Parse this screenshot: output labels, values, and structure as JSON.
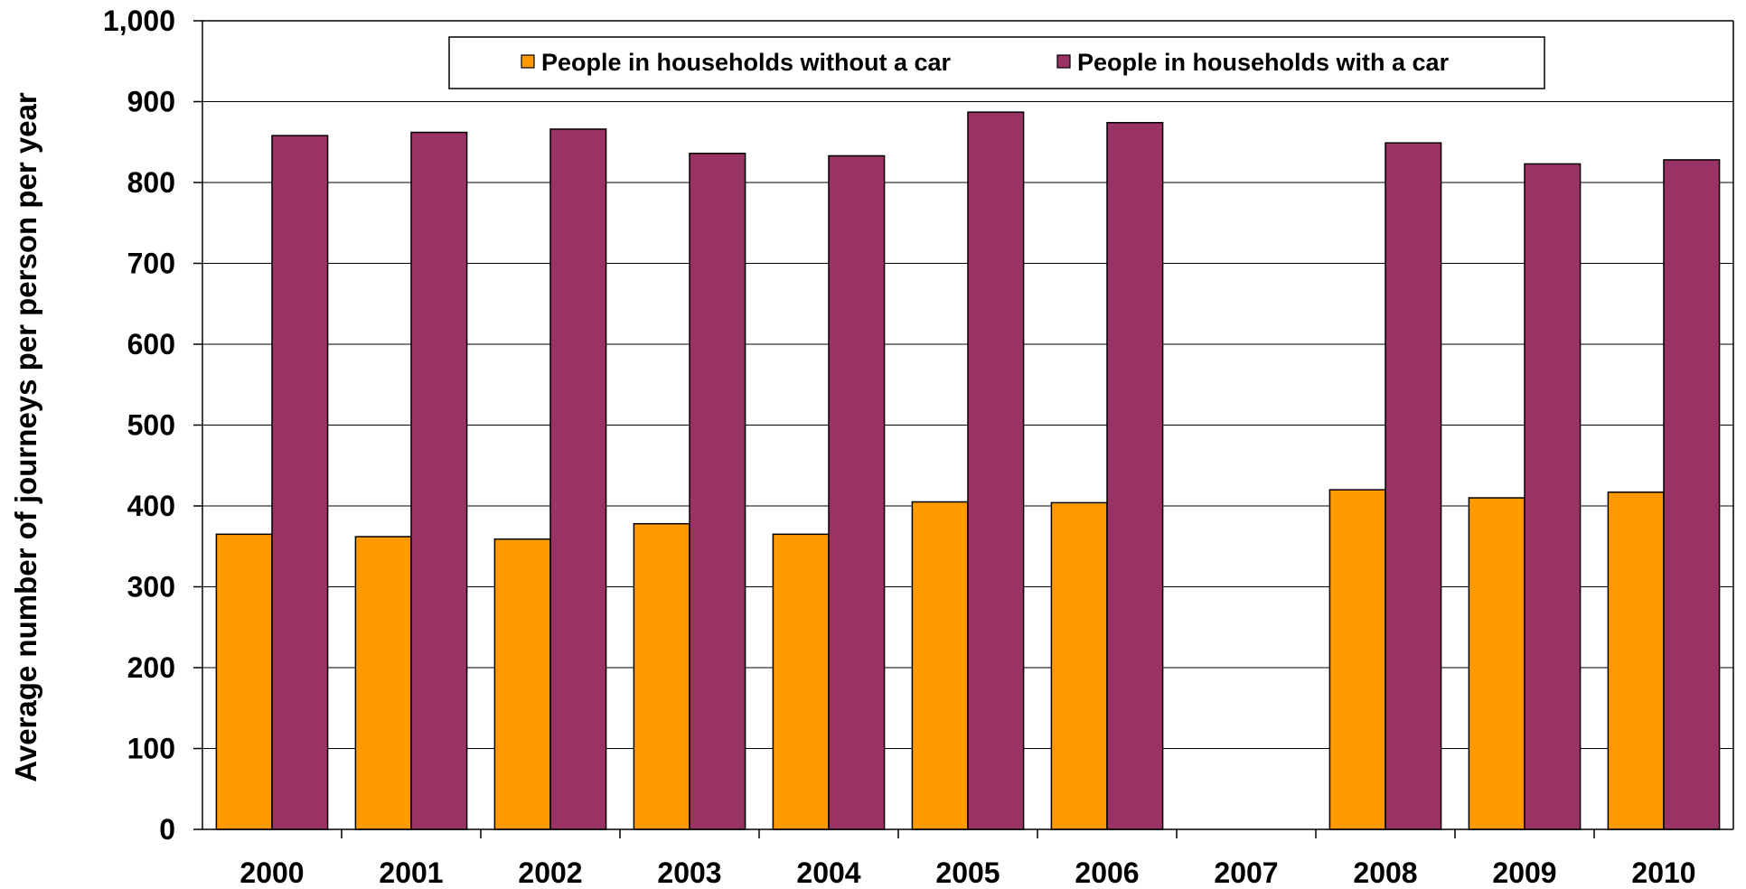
{
  "chart_data": {
    "type": "bar",
    "title": "",
    "xlabel": "",
    "ylabel": "Average number of journeys per person per year",
    "categories": [
      "2000",
      "2001",
      "2002",
      "2003",
      "2004",
      "2005",
      "2006",
      "2007",
      "2008",
      "2009",
      "2010"
    ],
    "series": [
      {
        "name": "People in households without a car",
        "color": "#FF9900",
        "values": [
          365,
          362,
          359,
          378,
          365,
          405,
          404,
          null,
          420,
          410,
          417
        ]
      },
      {
        "name": "People in households with a car",
        "color": "#993366",
        "values": [
          858,
          862,
          866,
          836,
          833,
          887,
          874,
          null,
          849,
          823,
          828
        ]
      }
    ],
    "ylim": [
      0,
      1000
    ],
    "yticks": [
      0,
      100,
      200,
      300,
      400,
      500,
      600,
      700,
      800,
      900,
      1000
    ],
    "ytick_labels": [
      "0",
      "100",
      "200",
      "300",
      "400",
      "500",
      "600",
      "700",
      "800",
      "900",
      "1,000"
    ],
    "grid": true,
    "legend_position": "top"
  }
}
